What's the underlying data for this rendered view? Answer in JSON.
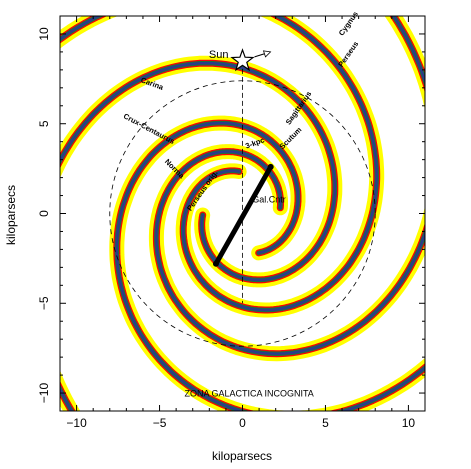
{
  "chart_data": {
    "type": "diagram",
    "xlabel": "kiloparsecs",
    "ylabel": "kiloparsecs",
    "xlim": [
      -11,
      11
    ],
    "ylim": [
      -11,
      11
    ],
    "x_ticks": [
      -10,
      -5,
      0,
      5,
      10
    ],
    "y_ticks": [
      -10,
      -5,
      0,
      5,
      10
    ],
    "x_tick_labels": [
      "−10",
      "−5",
      "0",
      "5",
      "10"
    ],
    "y_tick_labels": [
      "−10",
      "−5",
      "0",
      "5",
      "10"
    ],
    "arm_colors": {
      "glow": "#ffff00",
      "outer": "#ff0000",
      "inner": "#1f6e3a",
      "core": "#2a3c8c"
    },
    "arms": [
      {
        "name": "Perseus",
        "start_angle_deg": -66,
        "arm_a": 2.4,
        "arm_b": 0.26
      },
      {
        "name": "Sagittarius",
        "start_angle_deg": 8,
        "arm_a": 2.3,
        "arm_b": 0.26
      },
      {
        "name": "Scutum",
        "start_angle_deg": 95,
        "arm_a": 2.35,
        "arm_b": 0.26
      },
      {
        "name": "Norma",
        "start_angle_deg": 182,
        "arm_a": 2.4,
        "arm_b": 0.26
      }
    ],
    "bar": {
      "x1": -1.6,
      "y1": -2.8,
      "x2": 1.7,
      "y2": 2.6
    },
    "solar_circle_radius": 8.0,
    "sun": {
      "x": 0,
      "y": 8.5,
      "label": "Sun"
    },
    "labels": [
      {
        "text": "Cygnus",
        "x": 6.5,
        "y": 10.5,
        "angle": -55,
        "cls": "arm"
      },
      {
        "text": "Perseus",
        "x": 6.5,
        "y": 8.8,
        "angle": -55,
        "cls": "arm"
      },
      {
        "text": "Carina",
        "x": -5.5,
        "y": 7.1,
        "angle": 20,
        "cls": "arm"
      },
      {
        "text": "Sagittarius",
        "x": 3.5,
        "y": 5.8,
        "angle": -55,
        "cls": "arm"
      },
      {
        "text": "Crux-Centaurus",
        "x": -5.7,
        "y": 4.6,
        "angle": 28,
        "cls": "arm"
      },
      {
        "text": "Scutum",
        "x": 3.0,
        "y": 4.1,
        "angle": -45,
        "cls": "arm"
      },
      {
        "text": "3-kpc",
        "x": 0.8,
        "y": 3.8,
        "angle": -20,
        "cls": "arm"
      },
      {
        "text": "Norma",
        "x": -4.2,
        "y": 2.4,
        "angle": 45,
        "cls": "arm"
      },
      {
        "text": "Perseus orig.",
        "x": -2.3,
        "y": 1.2,
        "angle": -55,
        "cls": "arm"
      },
      {
        "text": "Gal.Cntr",
        "x": 1.6,
        "y": 0.6,
        "angle": 0,
        "cls": "big"
      },
      {
        "text": "ZONA GALACTICA INCOGNITA",
        "x": 0.4,
        "y": -10.2,
        "angle": 0,
        "cls": "big"
      }
    ]
  }
}
